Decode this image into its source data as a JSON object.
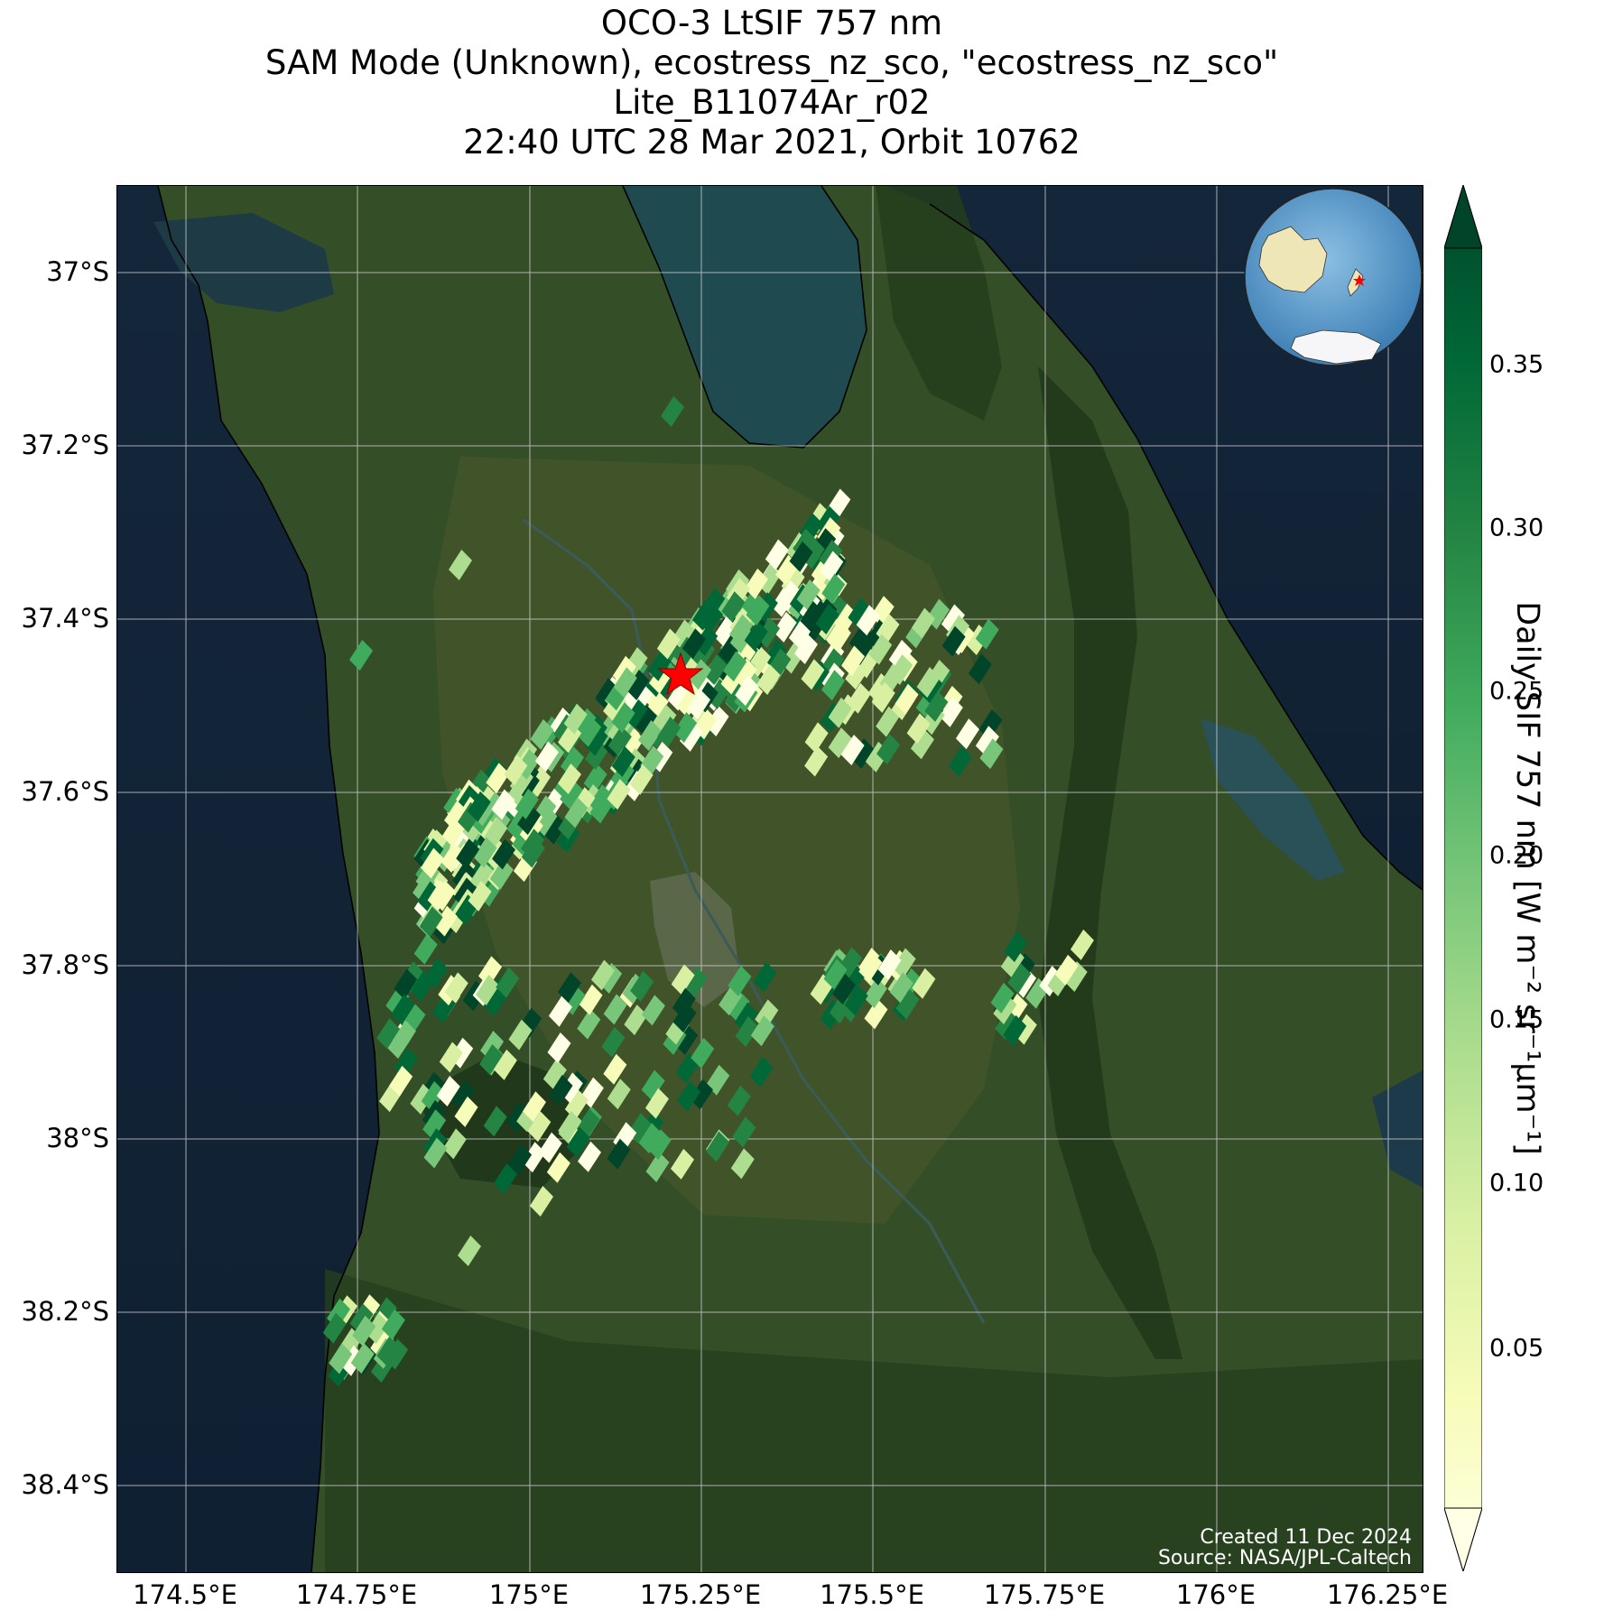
{
  "title_lines": [
    "OCO-3 LtSIF 757 nm",
    "SAM Mode (Unknown), ecostress_nz_sco, \"ecostress_nz_sco\"",
    "Lite_B11074Ar_r02",
    "22:40 UTC 28 Mar 2021, Orbit 10762"
  ],
  "y_ticks": [
    "37°S",
    "37.2°S",
    "37.4°S",
    "37.6°S",
    "37.8°S",
    "38°S",
    "38.2°S",
    "38.4°S"
  ],
  "x_ticks": [
    "174.5°E",
    "174.75°E",
    "175°E",
    "175.25°E",
    "175.5°E",
    "175.75°E",
    "176°E",
    "176.25°E"
  ],
  "colorbar": {
    "label": "Daily SIF 757 nm [W m⁻² sr⁻¹μm⁻¹]",
    "ticks": [
      "0.35",
      "0.30",
      "0.25",
      "0.20",
      "0.15",
      "0.10",
      "0.05"
    ],
    "colormap": "YlGn",
    "colors": [
      "#ffffe5",
      "#f7fcb9",
      "#d9f0a3",
      "#addd8e",
      "#78c679",
      "#41ab5d",
      "#238443",
      "#006837",
      "#004529"
    ]
  },
  "credits": {
    "created": "Created 11 Dec 2024",
    "source": "Source: NASA/JPL-Caltech"
  },
  "marker": {
    "icon": "red-star-icon",
    "color": "#ff0000",
    "lon": 175.21,
    "lat": -37.46
  },
  "map_extent": {
    "lon_min": 174.4,
    "lon_max": 176.3,
    "lat_min": -38.5,
    "lat_max": -36.9
  },
  "inset": {
    "type": "globe-locator",
    "features": [
      "Australia",
      "Antarctica",
      "New Zealand"
    ]
  }
}
